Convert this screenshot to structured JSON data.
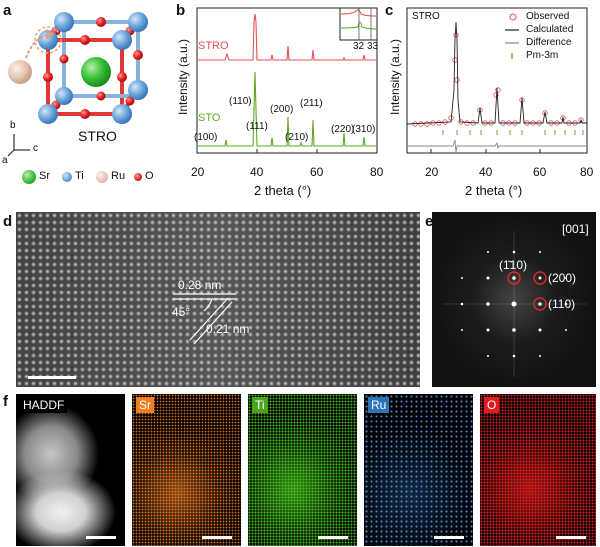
{
  "panels": {
    "a": "a",
    "b": "b",
    "c": "c",
    "d": "d",
    "e": "e",
    "f": "f"
  },
  "crystal": {
    "title": "STRO",
    "axes": {
      "b": "b",
      "c": "c",
      "a": "a"
    },
    "legend": [
      {
        "label": "Sr",
        "color": "#2fb52f"
      },
      {
        "label": "Ti",
        "color": "#5b9bd5"
      },
      {
        "label": "Ru",
        "color": "#e3c1ae"
      },
      {
        "label": "O",
        "color": "#e02020"
      }
    ]
  },
  "xrd": {
    "ylabel": "Intensity (a.u.)",
    "xlabel": "2 theta (°)",
    "xticks": [
      "20",
      "40",
      "60",
      "80"
    ],
    "stro_label": "STRO",
    "sto_label": "STO",
    "inset_ticks": [
      "32",
      "33"
    ],
    "peaks": [
      "(100)",
      "(110)",
      "(111)",
      "(200)",
      "(210)",
      "(211)",
      "(220)",
      "(310)"
    ],
    "colors": {
      "stro": "#e05252",
      "sto": "#5faa1e"
    }
  },
  "rietveld": {
    "title": "STRO",
    "ylabel": "Intensity (a.u.)",
    "xlabel": "2 theta (°)",
    "xticks": [
      "20",
      "40",
      "60",
      "80"
    ],
    "legend": [
      {
        "label": "Observed",
        "kind": "circle",
        "color": "#e05252"
      },
      {
        "label": "Calculated",
        "kind": "line",
        "color": "#222222"
      },
      {
        "label": "Difference",
        "kind": "line",
        "color": "#888888"
      },
      {
        "label": "Pm-3m",
        "kind": "tick",
        "color": "#5faa1e"
      }
    ]
  },
  "hrtem": {
    "d1": "0.28 nm",
    "angle": "45°",
    "d2": "0.21 nm"
  },
  "fft": {
    "zone": "[001]",
    "spots": [
      "(1̄10)",
      "(200)",
      "(110)"
    ]
  },
  "eds": [
    {
      "label": "HADDF",
      "color": "#000000"
    },
    {
      "label": "Sr",
      "color": "#f07e24"
    },
    {
      "label": "Ti",
      "color": "#4aa51e"
    },
    {
      "label": "Ru",
      "color": "#2e73b8"
    },
    {
      "label": "O",
      "color": "#e21c1c"
    }
  ]
}
